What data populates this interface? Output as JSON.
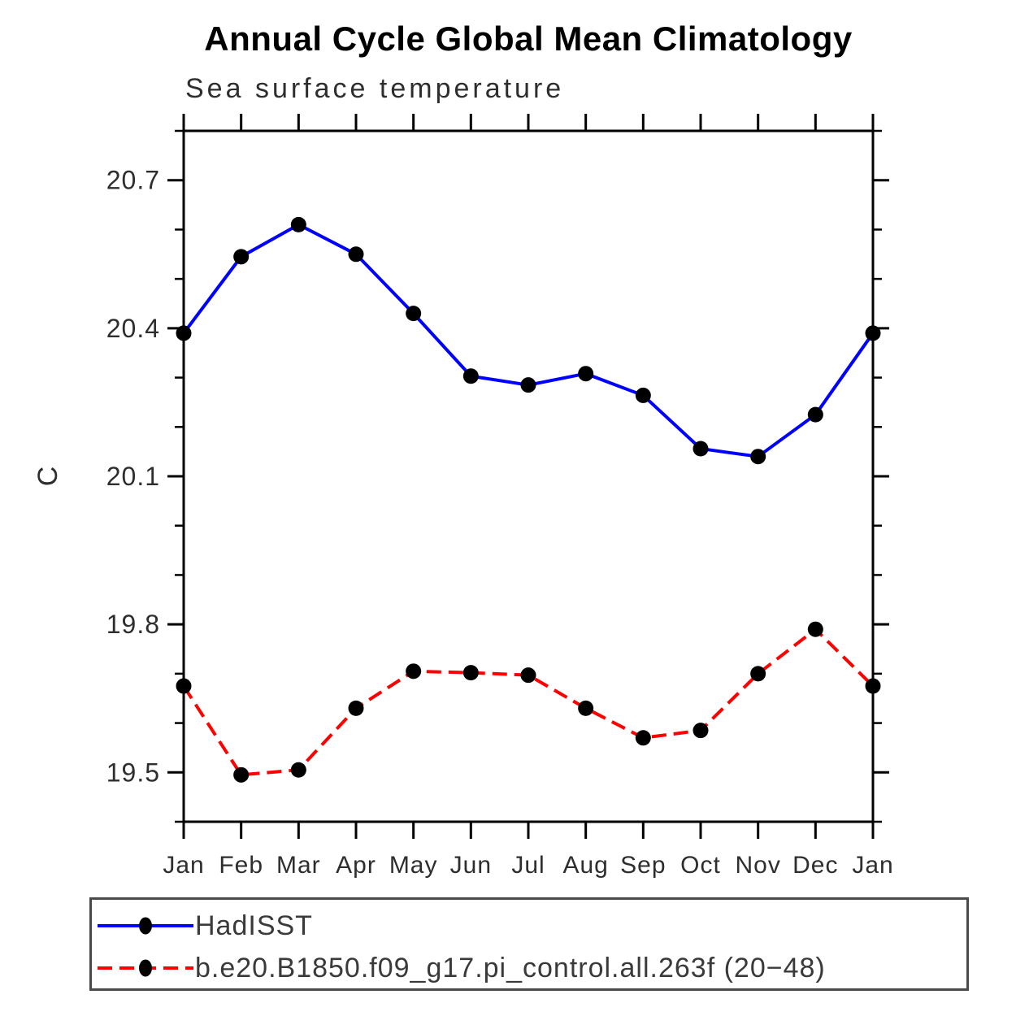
{
  "chart_data": {
    "type": "line",
    "title": "Annual Cycle Global Mean Climatology",
    "subtitle": "Sea surface temperature",
    "ylabel": "C",
    "xlabel": "",
    "categories": [
      "Jan",
      "Feb",
      "Mar",
      "Apr",
      "May",
      "Jun",
      "Jul",
      "Aug",
      "Sep",
      "Oct",
      "Nov",
      "Dec",
      "Jan"
    ],
    "ylim": [
      19.4,
      20.8
    ],
    "yticks_major": [
      19.5,
      19.8,
      20.1,
      20.4,
      20.7
    ],
    "ytick_labels": [
      "19.5",
      "19.8",
      "20.1",
      "20.4",
      "20.7"
    ],
    "yminor_step": 0.1,
    "grid": false,
    "legend_position": "bottom",
    "series": [
      {
        "name": "HadISST",
        "color": "#0000ff",
        "line_style": "solid",
        "marker": "filled-circle",
        "marker_color": "#000000",
        "values": [
          20.39,
          20.545,
          20.61,
          20.55,
          20.43,
          20.303,
          20.285,
          20.308,
          20.264,
          20.156,
          20.14,
          20.225,
          20.39
        ]
      },
      {
        "name": "b.e20.B1850.f09_g17.pi_control.all.263f (20−48)",
        "color": "#ff0000",
        "line_style": "dashed",
        "marker": "filled-circle",
        "marker_color": "#000000",
        "values": [
          19.675,
          19.495,
          19.505,
          19.63,
          19.705,
          19.702,
          19.697,
          19.63,
          19.57,
          19.585,
          19.7,
          19.79,
          19.675
        ]
      }
    ]
  },
  "colors": {
    "background": "#ffffff",
    "axis": "#000000",
    "tick_label_text": "#2e2e2e",
    "title_text": "#000000",
    "legend_border": "#4a4a4a",
    "legend_text": "#3a3a3a"
  }
}
